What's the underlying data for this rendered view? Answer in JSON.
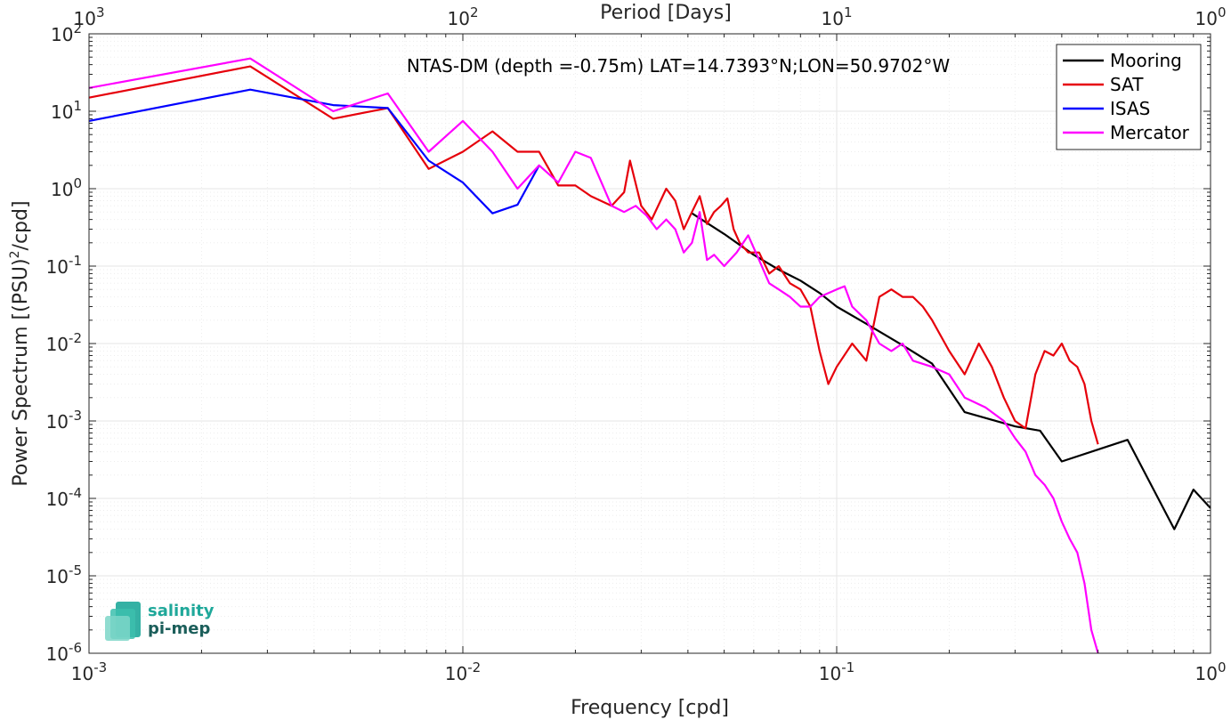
{
  "chart_data": {
    "type": "line",
    "title": "NTAS-DM (depth =-0.75m) LAT=14.7393°N;LON=50.9702°W",
    "xlabel": "Frequency [cpd]",
    "ylabel_main": "Power Spectrum [(PSU)",
    "ylabel_sup": "2",
    "ylabel_end": "/cpd]",
    "top_xlabel": "Period [Days]",
    "x_scale": "log",
    "y_scale": "log",
    "xlim": [
      0.001,
      1
    ],
    "ylim": [
      1e-06,
      100
    ],
    "grid": true,
    "legend_position": "top-right",
    "x_ticks": [
      {
        "value": 0.001,
        "base": "10",
        "exp": "-3"
      },
      {
        "value": 0.01,
        "base": "10",
        "exp": "-2"
      },
      {
        "value": 0.1,
        "base": "10",
        "exp": "-1"
      },
      {
        "value": 1,
        "base": "10",
        "exp": "0"
      }
    ],
    "top_ticks": [
      {
        "value": 0.001,
        "base": "10",
        "exp": "3"
      },
      {
        "value": 0.01,
        "base": "10",
        "exp": "2"
      },
      {
        "value": 0.1,
        "base": "10",
        "exp": "1"
      },
      {
        "value": 1,
        "base": "10",
        "exp": "0"
      }
    ],
    "y_ticks": [
      {
        "value": 100,
        "base": "10",
        "exp": "2"
      },
      {
        "value": 10,
        "base": "10",
        "exp": "1"
      },
      {
        "value": 1,
        "base": "10",
        "exp": "0"
      },
      {
        "value": 0.1,
        "base": "10",
        "exp": "-1"
      },
      {
        "value": 0.01,
        "base": "10",
        "exp": "-2"
      },
      {
        "value": 0.001,
        "base": "10",
        "exp": "-3"
      },
      {
        "value": 0.0001,
        "base": "10",
        "exp": "-4"
      },
      {
        "value": 1e-05,
        "base": "10",
        "exp": "-5"
      },
      {
        "value": 1e-06,
        "base": "10",
        "exp": "-6"
      }
    ],
    "series": [
      {
        "name": "Mooring",
        "color": "#000000",
        "x": [
          0.041,
          0.05,
          0.06,
          0.07,
          0.08,
          0.09,
          0.1,
          0.12,
          0.15,
          0.18,
          0.22,
          0.3,
          0.35,
          0.4,
          0.6,
          0.8,
          0.9,
          1.0
        ],
        "y": [
          0.48,
          0.26,
          0.14,
          0.09,
          0.065,
          0.045,
          0.03,
          0.018,
          0.0095,
          0.0055,
          0.0013,
          0.00085,
          0.00075,
          0.0003,
          0.00057,
          4e-05,
          0.00013,
          7.5e-05
        ]
      },
      {
        "name": "SAT",
        "color": "#e6000b",
        "x": [
          0.001,
          0.0027,
          0.0045,
          0.0063,
          0.0081,
          0.01,
          0.012,
          0.014,
          0.016,
          0.018,
          0.02,
          0.022,
          0.025,
          0.027,
          0.028,
          0.03,
          0.032,
          0.035,
          0.037,
          0.039,
          0.041,
          0.043,
          0.045,
          0.047,
          0.049,
          0.051,
          0.053,
          0.055,
          0.058,
          0.062,
          0.066,
          0.07,
          0.075,
          0.08,
          0.085,
          0.09,
          0.095,
          0.1,
          0.11,
          0.12,
          0.13,
          0.14,
          0.15,
          0.16,
          0.17,
          0.18,
          0.2,
          0.22,
          0.24,
          0.26,
          0.28,
          0.3,
          0.32,
          0.34,
          0.36,
          0.38,
          0.4,
          0.42,
          0.44,
          0.46,
          0.48,
          0.5
        ],
        "y": [
          15,
          38,
          8,
          11,
          1.8,
          3,
          5.5,
          3,
          3,
          1.1,
          1.1,
          0.8,
          0.6,
          0.9,
          2.3,
          0.6,
          0.4,
          1.0,
          0.7,
          0.3,
          0.5,
          0.8,
          0.35,
          0.5,
          0.6,
          0.75,
          0.3,
          0.2,
          0.15,
          0.15,
          0.08,
          0.1,
          0.06,
          0.05,
          0.03,
          0.008,
          0.003,
          0.005,
          0.01,
          0.006,
          0.04,
          0.05,
          0.04,
          0.04,
          0.03,
          0.02,
          0.008,
          0.004,
          0.01,
          0.005,
          0.002,
          0.001,
          0.0008,
          0.004,
          0.008,
          0.007,
          0.01,
          0.006,
          0.005,
          0.003,
          0.001,
          0.0005
        ]
      },
      {
        "name": "ISAS",
        "color": "#0000ff",
        "x": [
          0.001,
          0.0027,
          0.0045,
          0.0063,
          0.0081,
          0.01,
          0.012,
          0.014,
          0.016
        ],
        "y": [
          7.5,
          19,
          12,
          11,
          2.3,
          1.2,
          0.48,
          0.62,
          2
        ]
      },
      {
        "name": "Mercator",
        "color": "#ff00ff",
        "x": [
          0.001,
          0.0027,
          0.0045,
          0.0063,
          0.0081,
          0.01,
          0.012,
          0.014,
          0.016,
          0.018,
          0.02,
          0.022,
          0.025,
          0.027,
          0.029,
          0.031,
          0.033,
          0.035,
          0.037,
          0.039,
          0.041,
          0.043,
          0.045,
          0.047,
          0.05,
          0.054,
          0.058,
          0.062,
          0.066,
          0.07,
          0.075,
          0.08,
          0.085,
          0.09,
          0.1,
          0.105,
          0.11,
          0.12,
          0.13,
          0.14,
          0.15,
          0.16,
          0.18,
          0.2,
          0.22,
          0.25,
          0.28,
          0.3,
          0.32,
          0.34,
          0.36,
          0.38,
          0.4,
          0.42,
          0.44,
          0.46,
          0.48,
          0.5
        ],
        "y": [
          20,
          48,
          10,
          17,
          3,
          7.5,
          3,
          1,
          2,
          1.2,
          3,
          2.5,
          0.6,
          0.5,
          0.6,
          0.45,
          0.3,
          0.4,
          0.3,
          0.15,
          0.2,
          0.5,
          0.12,
          0.14,
          0.1,
          0.15,
          0.25,
          0.12,
          0.06,
          0.05,
          0.04,
          0.03,
          0.03,
          0.04,
          0.05,
          0.055,
          0.03,
          0.02,
          0.01,
          0.008,
          0.01,
          0.006,
          0.005,
          0.004,
          0.002,
          0.0015,
          0.001,
          0.0006,
          0.0004,
          0.0002,
          0.00015,
          0.0001,
          5e-05,
          3e-05,
          2e-05,
          8e-06,
          2e-06,
          1e-06
        ]
      }
    ]
  },
  "logo": {
    "line1": "salinity",
    "line2": "pi-mep",
    "color": "#1fa89a"
  }
}
